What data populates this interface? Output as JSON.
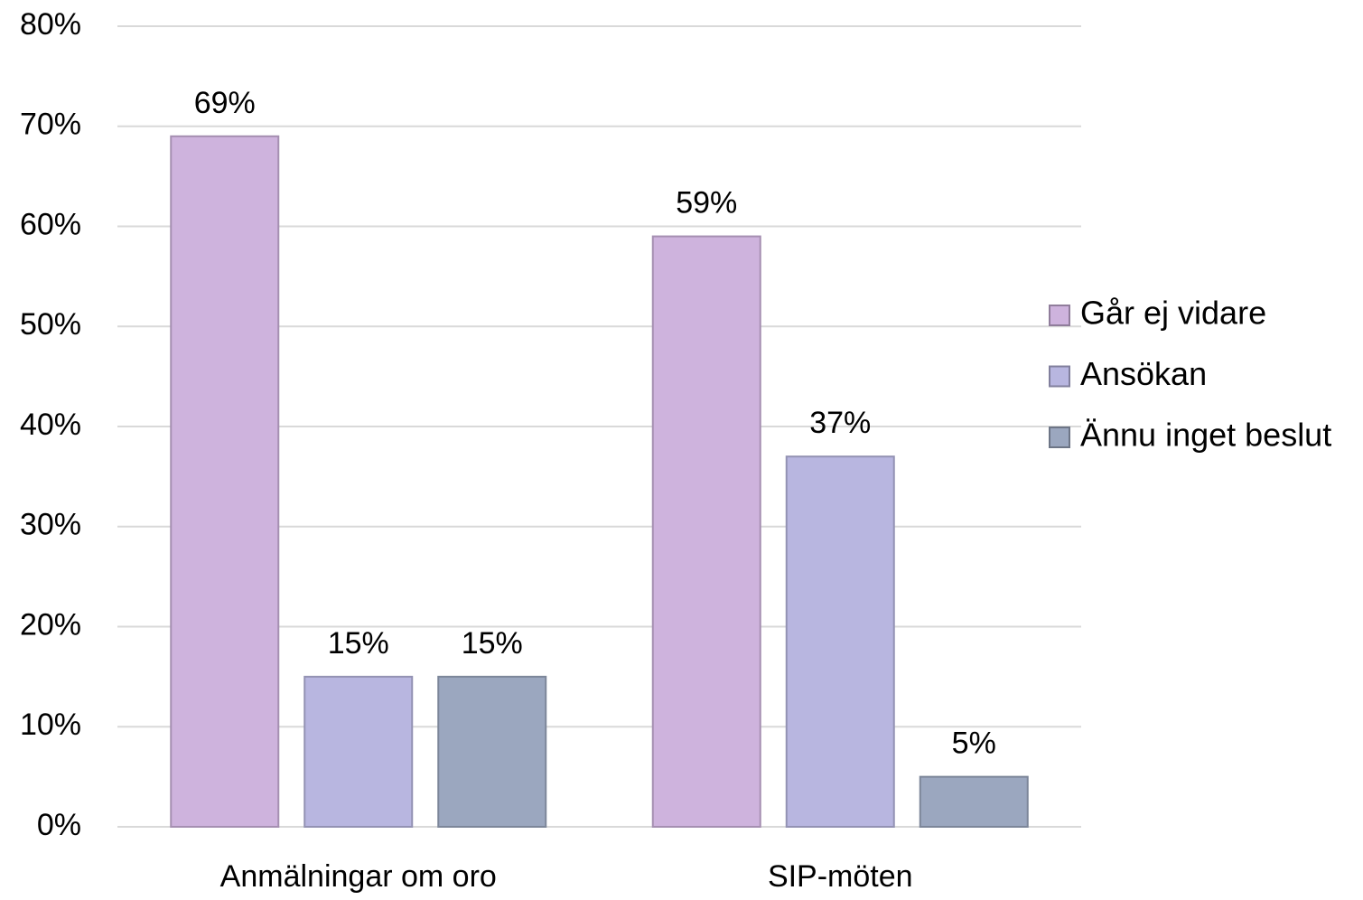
{
  "chart_data": {
    "type": "bar",
    "categories": [
      "Anmälningar om oro",
      "SIP-möten"
    ],
    "series": [
      {
        "name": "Går ej vidare",
        "color": "#ceb3dd",
        "values": [
          69,
          59
        ],
        "value_labels": [
          "69%",
          "59%"
        ]
      },
      {
        "name": "Ansökan",
        "color": "#b8b6e0",
        "values": [
          15,
          37
        ],
        "value_labels": [
          "15%",
          "37%"
        ]
      },
      {
        "name": "Ännu inget beslut",
        "color": "#9ba7bf",
        "values": [
          15,
          5
        ],
        "value_labels": [
          "15%",
          "5%"
        ]
      }
    ],
    "ylim": [
      0,
      80
    ],
    "yticks": [
      {
        "value": 0,
        "label": "0%"
      },
      {
        "value": 10,
        "label": "10%"
      },
      {
        "value": 20,
        "label": "20%"
      },
      {
        "value": 30,
        "label": "30%"
      },
      {
        "value": 40,
        "label": "40%"
      },
      {
        "value": 50,
        "label": "50%"
      },
      {
        "value": 60,
        "label": "60%"
      },
      {
        "value": 70,
        "label": "70%"
      },
      {
        "value": 80,
        "label": "80%"
      }
    ],
    "grid": true,
    "legend": "right"
  }
}
